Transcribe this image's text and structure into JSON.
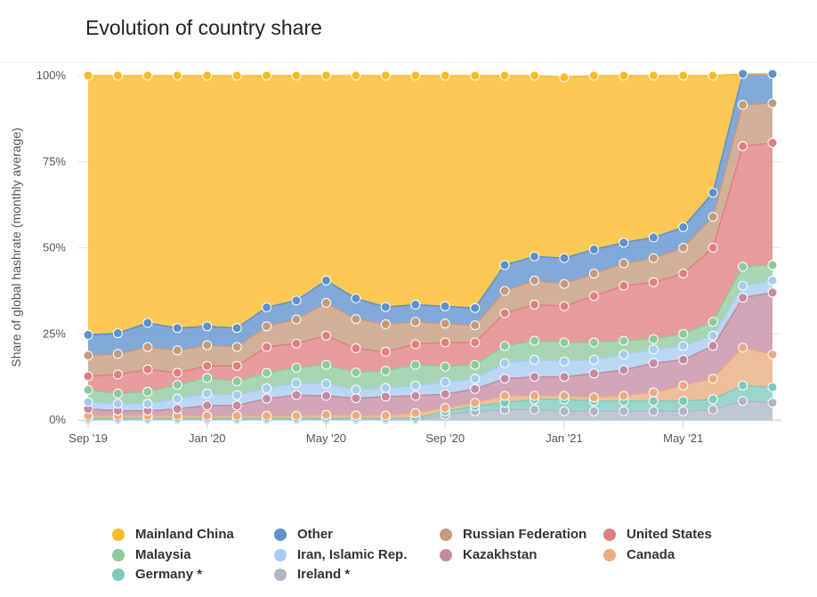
{
  "title": "Evolution of country share",
  "chart_data": {
    "type": "area",
    "stacked": true,
    "title": "Evolution of country share",
    "ylabel": "Share of global hashrate (monthly average)",
    "xlabel": "",
    "ylim": [
      0,
      100
    ],
    "y_ticks": [
      "0%",
      "25%",
      "50%",
      "75%",
      "100%"
    ],
    "x_tick_labels": [
      "Sep '19",
      "Jan '20",
      "May '20",
      "Sep '20",
      "Jan '21",
      "May '21"
    ],
    "x": [
      "2019-09",
      "2019-10",
      "2019-11",
      "2019-12",
      "2020-01",
      "2020-02",
      "2020-03",
      "2020-04",
      "2020-05",
      "2020-06",
      "2020-07",
      "2020-08",
      "2020-09",
      "2020-10",
      "2020-11",
      "2020-12",
      "2021-01",
      "2021-02",
      "2021-03",
      "2021-04",
      "2021-05",
      "2021-06",
      "2021-07",
      "2021-08"
    ],
    "grid": "horizontal",
    "legend_position": "bottom",
    "series": [
      {
        "name": "Ireland *",
        "color": "#b0b6c6",
        "values": [
          0.0,
          0.0,
          0.0,
          0.0,
          0.0,
          0.0,
          0.0,
          0.0,
          0.0,
          0.0,
          0.0,
          0.0,
          1.5,
          2.5,
          3.0,
          3.0,
          2.5,
          2.5,
          2.5,
          2.5,
          2.5,
          3.0,
          5.5,
          5.0
        ]
      },
      {
        "name": "Germany *",
        "color": "#7fcabe",
        "values": [
          0.5,
          0.5,
          0.5,
          0.5,
          0.5,
          0.5,
          0.5,
          0.5,
          0.5,
          0.5,
          0.5,
          0.5,
          1.0,
          1.5,
          2.0,
          3.0,
          3.5,
          3.0,
          3.0,
          3.0,
          3.0,
          3.0,
          4.5,
          4.5
        ]
      },
      {
        "name": "Canada",
        "color": "#ebad80",
        "values": [
          0.7,
          0.7,
          0.7,
          0.7,
          0.7,
          0.7,
          0.7,
          0.7,
          1.0,
          0.8,
          0.8,
          1.5,
          1.0,
          1.0,
          2.0,
          1.0,
          1.0,
          1.0,
          1.5,
          2.5,
          4.5,
          6.0,
          11.0,
          9.5
        ]
      },
      {
        "name": "Kazakhstan",
        "color": "#c58aa3",
        "values": [
          2.0,
          1.5,
          1.5,
          2.0,
          3.0,
          3.0,
          5.0,
          6.0,
          5.5,
          5.0,
          5.5,
          5.0,
          4.0,
          4.0,
          5.0,
          5.5,
          5.5,
          7.0,
          7.5,
          8.5,
          7.5,
          9.5,
          14.5,
          18.0
        ]
      },
      {
        "name": "Iran, Islamic Rep.",
        "color": "#a6cdf0",
        "values": [
          2.0,
          2.0,
          2.0,
          3.0,
          3.5,
          3.0,
          3.0,
          3.5,
          3.5,
          2.5,
          2.5,
          3.0,
          3.5,
          3.0,
          4.5,
          5.0,
          4.5,
          4.0,
          4.5,
          4.0,
          4.0,
          3.0,
          3.5,
          3.5
        ]
      },
      {
        "name": "Malaysia",
        "color": "#8fca9c",
        "values": [
          3.5,
          3.0,
          3.5,
          4.0,
          4.5,
          4.0,
          4.5,
          4.5,
          5.5,
          5.0,
          5.0,
          6.0,
          4.5,
          4.0,
          5.0,
          5.5,
          5.5,
          5.0,
          4.0,
          3.0,
          3.5,
          4.0,
          5.5,
          4.5
        ]
      },
      {
        "name": "United States",
        "color": "#e07f80",
        "values": [
          4.0,
          5.5,
          6.5,
          3.5,
          3.5,
          4.5,
          7.5,
          7.0,
          8.5,
          7.0,
          5.5,
          6.0,
          7.0,
          6.5,
          9.5,
          10.5,
          10.5,
          13.5,
          16.0,
          16.5,
          17.5,
          21.5,
          35.0,
          35.5
        ]
      },
      {
        "name": "Russian Federation",
        "color": "#c49a7e",
        "values": [
          6.0,
          6.0,
          6.5,
          6.5,
          6.0,
          5.5,
          6.0,
          7.0,
          9.5,
          8.5,
          8.0,
          6.5,
          5.5,
          5.0,
          6.5,
          7.0,
          6.5,
          6.5,
          6.5,
          7.0,
          7.5,
          9.0,
          12.0,
          11.5
        ]
      },
      {
        "name": "Other",
        "color": "#5f91cc",
        "values": [
          6.0,
          6.0,
          7.0,
          6.5,
          5.5,
          5.5,
          5.5,
          5.5,
          6.5,
          6.0,
          5.0,
          5.0,
          5.0,
          5.0,
          7.5,
          7.0,
          7.5,
          7.0,
          6.0,
          6.0,
          6.0,
          7.0,
          9.0,
          8.5
        ]
      },
      {
        "name": "Mainland China",
        "color": "#fbb926",
        "values": [
          75.3,
          74.8,
          71.8,
          73.3,
          72.8,
          73.3,
          67.3,
          65.3,
          59.5,
          64.7,
          67.2,
          66.5,
          67.0,
          67.5,
          55.0,
          52.5,
          52.5,
          50.5,
          48.5,
          47.0,
          44.0,
          34.0,
          0.0,
          0.0
        ]
      }
    ]
  },
  "legend_order": [
    "Mainland China",
    "Other",
    "Russian Federation",
    "United States",
    "Malaysia",
    "Iran, Islamic Rep.",
    "Kazakhstan",
    "Canada",
    "Germany *",
    "Ireland *"
  ]
}
